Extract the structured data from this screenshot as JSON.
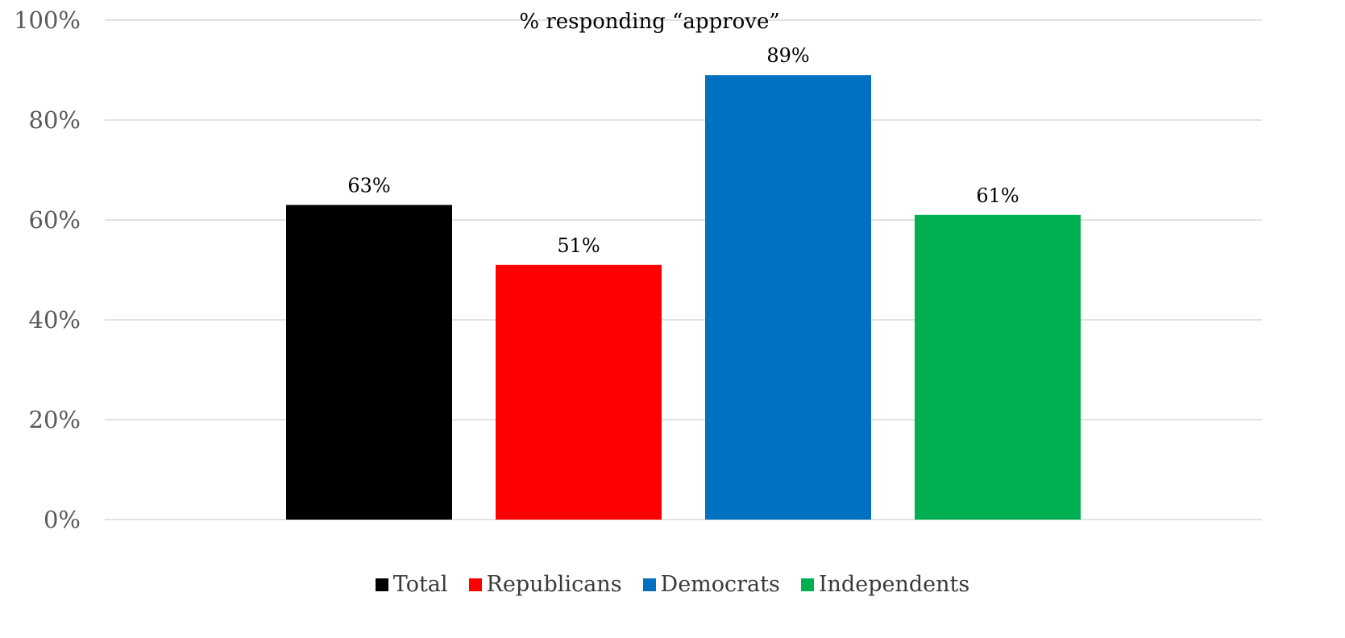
{
  "chart_data": {
    "type": "bar",
    "title": "% responding “approve”",
    "categories": [
      "Total",
      "Republicans",
      "Democrats",
      "Independents"
    ],
    "values": [
      63,
      51,
      89,
      61
    ],
    "data_labels": [
      "63%",
      "51%",
      "89%",
      "61%"
    ],
    "colors": [
      "#000000",
      "#ff0000",
      "#0070c0",
      "#00b050"
    ],
    "ylim": [
      0,
      100
    ],
    "yticks": [
      0,
      20,
      40,
      60,
      80,
      100
    ],
    "ytick_labels": [
      "0%",
      "20%",
      "40%",
      "60%",
      "80%",
      "100%"
    ],
    "xlabel": "",
    "ylabel": "",
    "grid": true,
    "legend_position": "bottom",
    "gridline_color": "#d9d9d9"
  }
}
